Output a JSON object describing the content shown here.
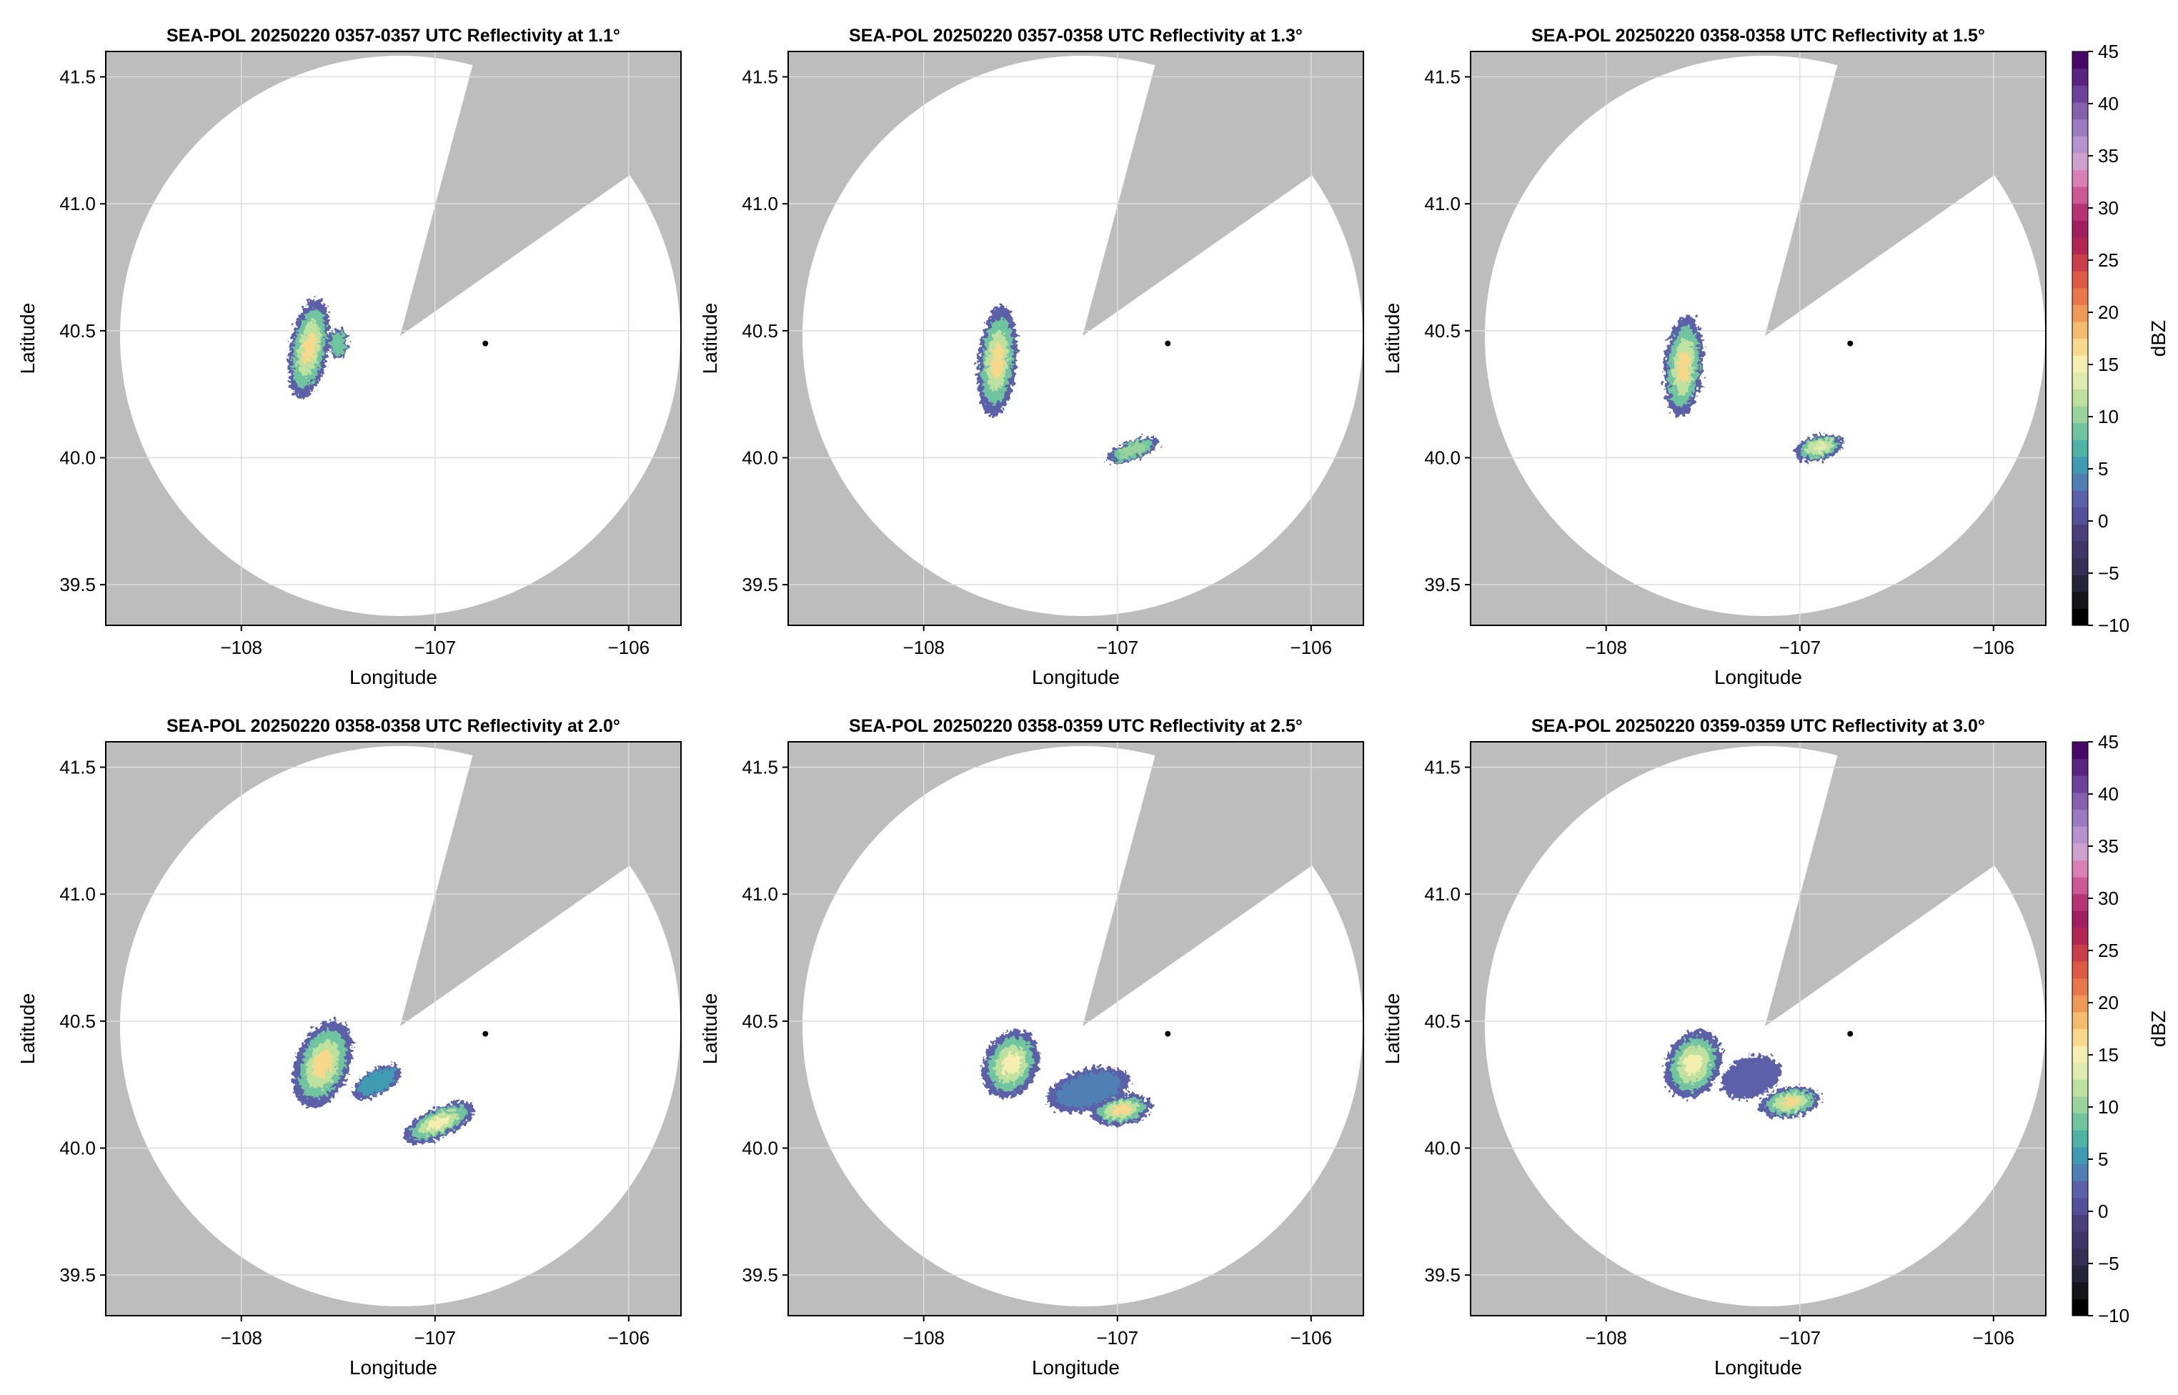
{
  "figure": {
    "shared": {
      "xlabel": "Longitude",
      "ylabel": "Latitude",
      "xticks": [
        -108,
        -107,
        -106
      ],
      "xtick_labels": [
        "−108",
        "−107",
        "−106"
      ],
      "yticks": [
        39.5,
        40.0,
        40.5,
        41.0,
        41.5
      ],
      "ytick_labels": [
        "39.5",
        "40.0",
        "40.5",
        "41.0",
        "41.5"
      ],
      "xlim": [
        -108.7,
        -105.73
      ],
      "ylim": [
        39.34,
        41.6
      ],
      "radar_location": [
        -106.74,
        40.45
      ],
      "range_ring_center": [
        -107.18,
        40.48
      ],
      "blocked_sector_deg": [
        15,
        55
      ],
      "colors": {
        "outside_range": "#bdbdbd",
        "inside_range": "#ffffff",
        "grid": "#dddddd",
        "radar_marker": "#000000"
      }
    },
    "colorbar": {
      "label": "dBZ",
      "range": [
        -10,
        45
      ],
      "ticks": [
        -10,
        -5,
        0,
        5,
        10,
        15,
        20,
        25,
        30,
        35,
        40,
        45
      ],
      "tick_labels": [
        "−10",
        "−5",
        "0",
        "5",
        "10",
        "15",
        "20",
        "25",
        "30",
        "35",
        "40",
        "45"
      ],
      "colors": [
        "#000000",
        "#141419",
        "#25253a",
        "#342f54",
        "#3f3566",
        "#4a3f7a",
        "#55509a",
        "#5b61a8",
        "#4f7fb3",
        "#3f9bb2",
        "#4db4a5",
        "#70c49f",
        "#98d39c",
        "#bfe1a0",
        "#e0ebae",
        "#f4eeb0",
        "#f6d98a",
        "#f3bd6d",
        "#ee9a56",
        "#e7784a",
        "#dd5a45",
        "#c93e48",
        "#b22654",
        "#a01e5f",
        "#b53574",
        "#cc5894",
        "#d981b4",
        "#cfa1cf",
        "#b594cd",
        "#9b7bbf",
        "#8560ad",
        "#6e4199",
        "#5a2482",
        "#460a66"
      ]
    },
    "chart_data": [
      {
        "type": "heatmap",
        "title": "SEA-POL 20250220 0357-0357 UTC Reflectivity at 1.1°",
        "elevation_deg": 1.1,
        "echoes": [
          {
            "lon": -107.65,
            "lat": 40.43,
            "rlon": 0.1,
            "rlat": 0.2,
            "max_dbz": 16,
            "rot": 10
          },
          {
            "lon": -107.5,
            "lat": 40.45,
            "rlon": 0.05,
            "rlat": 0.06,
            "max_dbz": 8,
            "rot": 0
          }
        ]
      },
      {
        "type": "heatmap",
        "title": "SEA-POL 20250220 0357-0358 UTC Reflectivity at 1.3°",
        "elevation_deg": 1.3,
        "echoes": [
          {
            "lon": -107.62,
            "lat": 40.38,
            "rlon": 0.1,
            "rlat": 0.22,
            "max_dbz": 16,
            "rot": 5
          },
          {
            "lon": -106.92,
            "lat": 40.03,
            "rlon": 0.14,
            "rlat": 0.04,
            "max_dbz": 11,
            "rot": -20
          }
        ]
      },
      {
        "type": "heatmap",
        "title": "SEA-POL 20250220 0358-0358 UTC Reflectivity at 1.5°",
        "elevation_deg": 1.5,
        "echoes": [
          {
            "lon": -107.6,
            "lat": 40.36,
            "rlon": 0.1,
            "rlat": 0.2,
            "max_dbz": 16,
            "rot": 5
          },
          {
            "lon": -106.9,
            "lat": 40.04,
            "rlon": 0.13,
            "rlat": 0.05,
            "max_dbz": 13,
            "rot": -15
          }
        ]
      },
      {
        "type": "heatmap",
        "title": "SEA-POL 20250220 0358-0358 UTC Reflectivity at 2.0°",
        "elevation_deg": 2.0,
        "echoes": [
          {
            "lon": -107.58,
            "lat": 40.33,
            "rlon": 0.14,
            "rlat": 0.18,
            "max_dbz": 16,
            "rot": 20
          },
          {
            "lon": -107.3,
            "lat": 40.26,
            "rlon": 0.14,
            "rlat": 0.05,
            "max_dbz": 5,
            "rot": -30
          },
          {
            "lon": -106.98,
            "lat": 40.1,
            "rlon": 0.2,
            "rlat": 0.06,
            "max_dbz": 15,
            "rot": -25
          }
        ]
      },
      {
        "type": "heatmap",
        "title": "SEA-POL 20250220 0358-0359 UTC Reflectivity at 2.5°",
        "elevation_deg": 2.5,
        "echoes": [
          {
            "lon": -107.55,
            "lat": 40.33,
            "rlon": 0.14,
            "rlat": 0.14,
            "max_dbz": 15,
            "rot": 25
          },
          {
            "lon": -107.15,
            "lat": 40.23,
            "rlon": 0.22,
            "rlat": 0.08,
            "max_dbz": 3,
            "rot": -15
          },
          {
            "lon": -106.98,
            "lat": 40.15,
            "rlon": 0.16,
            "rlat": 0.06,
            "max_dbz": 16,
            "rot": -10
          }
        ]
      },
      {
        "type": "heatmap",
        "title": "SEA-POL 20250220 0359-0359 UTC Reflectivity at 3.0°",
        "elevation_deg": 3.0,
        "echoes": [
          {
            "lon": -107.55,
            "lat": 40.33,
            "rlon": 0.14,
            "rlat": 0.14,
            "max_dbz": 15,
            "rot": 25
          },
          {
            "lon": -107.25,
            "lat": 40.28,
            "rlon": 0.16,
            "rlat": 0.08,
            "max_dbz": 2,
            "rot": -20
          },
          {
            "lon": -107.05,
            "lat": 40.18,
            "rlon": 0.16,
            "rlat": 0.06,
            "max_dbz": 16,
            "rot": -10
          }
        ]
      }
    ]
  }
}
